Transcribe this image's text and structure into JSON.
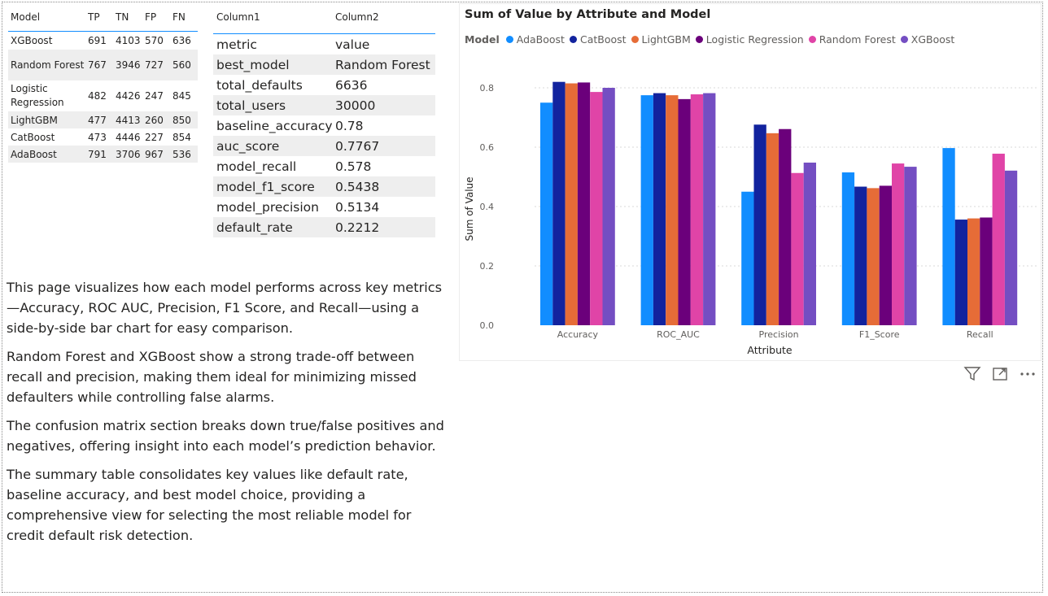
{
  "confusion_table": {
    "headers": [
      "Model",
      "TP",
      "TN",
      "FP",
      "FN"
    ],
    "rows": [
      {
        "model": "XGBoost",
        "tp": "691",
        "tn": "4103",
        "fp": "570",
        "fn": "636"
      },
      {
        "model": "Random Forest",
        "tp": "767",
        "tn": "3946",
        "fp": "727",
        "fn": "560"
      },
      {
        "model": "Logistic Regression",
        "tp": "482",
        "tn": "4426",
        "fp": "247",
        "fn": "845"
      },
      {
        "model": "LightGBM",
        "tp": "477",
        "tn": "4413",
        "fp": "260",
        "fn": "850"
      },
      {
        "model": "CatBoost",
        "tp": "473",
        "tn": "4446",
        "fp": "227",
        "fn": "854"
      },
      {
        "model": "AdaBoost",
        "tp": "791",
        "tn": "3706",
        "fp": "967",
        "fn": "536"
      }
    ]
  },
  "summary_table": {
    "headers": [
      "Column1",
      "Column2"
    ],
    "rows": [
      {
        "k": "metric",
        "v": "value"
      },
      {
        "k": "best_model",
        "v": "Random Forest"
      },
      {
        "k": "total_defaults",
        "v": "6636"
      },
      {
        "k": "total_users",
        "v": "30000"
      },
      {
        "k": "baseline_accuracy",
        "v": "0.78"
      },
      {
        "k": "auc_score",
        "v": "0.7767"
      },
      {
        "k": "model_recall",
        "v": "0.578"
      },
      {
        "k": "model_f1_score",
        "v": "0.5438"
      },
      {
        "k": "model_precision",
        "v": "0.5134"
      },
      {
        "k": "default_rate",
        "v": "0.2212"
      }
    ]
  },
  "paragraphs": [
    "This page visualizes how each model performs across key metrics—Accuracy, ROC AUC, Precision, F1 Score, and Recall—using a side-by-side bar chart for easy comparison.",
    "Random Forest and XGBoost show a strong trade-off between recall and precision, making them ideal for minimizing missed defaulters while controlling false alarms.",
    "The confusion matrix section breaks down true/false positives and negatives, offering insight into each model’s prediction behavior.",
    "The summary table consolidates key values like default rate, baseline accuracy, and best model choice, providing a comprehensive view for selecting the most reliable model for credit default risk detection."
  ],
  "visual_icons": [
    "filter-icon",
    "focus-mode-icon",
    "more-options-icon"
  ],
  "chart_data": {
    "type": "bar",
    "title": "Sum of Value by Attribute and Model",
    "xlabel": "Attribute",
    "ylabel": "Sum of Value",
    "legend_title": "Model",
    "legend_position": "top-left",
    "grid": true,
    "ylim": [
      0,
      0.85
    ],
    "yticks": [
      "0.0",
      "0.2",
      "0.4",
      "0.6",
      "0.8"
    ],
    "categories": [
      "Accuracy",
      "ROC_AUC",
      "Precision",
      "F1_Score",
      "Recall"
    ],
    "series": [
      {
        "name": "AdaBoost",
        "color": "#118dff",
        "values": [
          0.75,
          0.775,
          0.45,
          0.515,
          0.597
        ]
      },
      {
        "name": "CatBoost",
        "color": "#12239e",
        "values": [
          0.82,
          0.782,
          0.676,
          0.467,
          0.356
        ]
      },
      {
        "name": "LightGBM",
        "color": "#e66c37",
        "values": [
          0.815,
          0.775,
          0.647,
          0.462,
          0.36
        ]
      },
      {
        "name": "Logistic Regression",
        "color": "#6b007b",
        "values": [
          0.818,
          0.762,
          0.661,
          0.47,
          0.363
        ]
      },
      {
        "name": "Random Forest",
        "color": "#e044a7",
        "values": [
          0.786,
          0.778,
          0.513,
          0.545,
          0.578
        ]
      },
      {
        "name": "XGBoost",
        "color": "#744ec2",
        "values": [
          0.8,
          0.782,
          0.548,
          0.534,
          0.521
        ]
      }
    ]
  }
}
